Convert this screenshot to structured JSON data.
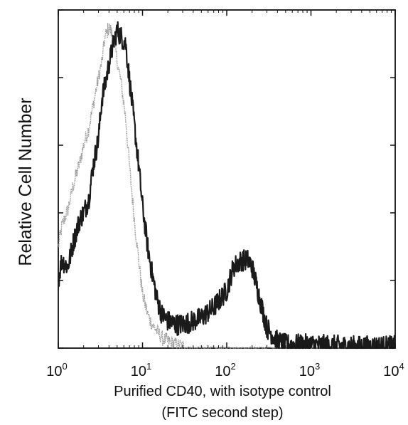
{
  "chart_data": {
    "type": "line",
    "title": "",
    "xlabel_lines": [
      "Purified CD40, with isotype control",
      "(FITC second step)"
    ],
    "ylabel": "Relative Cell Number",
    "x_scale": "log",
    "xlim": [
      1,
      10000
    ],
    "ylim": [
      0,
      100
    ],
    "x_tick_labels": [
      {
        "base": "10",
        "exp": "0"
      },
      {
        "base": "10",
        "exp": "1"
      },
      {
        "base": "10",
        "exp": "2"
      },
      {
        "base": "10",
        "exp": "3"
      },
      {
        "base": "10",
        "exp": "4"
      }
    ],
    "x_tick_values": [
      1,
      10,
      100,
      1000,
      10000
    ],
    "y_tick_values": [
      0,
      20,
      40,
      60,
      80,
      100
    ],
    "y_tick_labels_shown": false,
    "grid": false,
    "series": [
      {
        "color": "#999999",
        "style": "light-stippled",
        "x": [
          1.0,
          1.1,
          1.3,
          1.5,
          1.8,
          2.0,
          2.3,
          2.6,
          3.0,
          3.3,
          3.6,
          4.0,
          4.5,
          5.0,
          5.6,
          6.3,
          7.1,
          8.0,
          9.0,
          10,
          11.5,
          13,
          15,
          17,
          20,
          25,
          30,
          40,
          50,
          70,
          100,
          200,
          500,
          1000,
          10000
        ],
        "y": [
          30,
          36,
          41,
          48,
          55,
          60,
          65,
          72,
          80,
          85,
          92,
          95,
          92,
          85,
          78,
          68,
          52,
          38,
          26,
          16,
          10,
          7,
          5,
          3,
          2,
          1,
          0.5,
          0,
          0,
          0,
          0,
          0,
          0,
          0,
          0
        ]
      },
      {
        "color": "#1a1a1a",
        "style": "dark-noisy",
        "x": [
          1.0,
          1.1,
          1.3,
          1.5,
          1.8,
          2.0,
          2.3,
          2.6,
          3.0,
          3.3,
          3.6,
          4.0,
          4.5,
          5.0,
          5.6,
          6.3,
          7.1,
          8.0,
          9.0,
          10,
          11.5,
          13,
          15,
          17,
          20,
          25,
          30,
          40,
          50,
          70,
          100,
          120,
          150,
          180,
          200,
          250,
          300,
          400,
          500,
          1000,
          3000,
          10000
        ],
        "y": [
          20,
          26,
          24,
          31,
          38,
          40,
          44,
          54,
          62,
          74,
          78,
          84,
          90,
          94,
          92,
          90,
          78,
          66,
          54,
          42,
          30,
          22,
          14,
          10,
          8,
          7,
          7,
          8,
          9,
          12,
          17,
          24,
          26,
          26,
          24,
          14,
          6,
          2,
          1,
          1,
          0.5,
          0.5
        ]
      }
    ]
  }
}
